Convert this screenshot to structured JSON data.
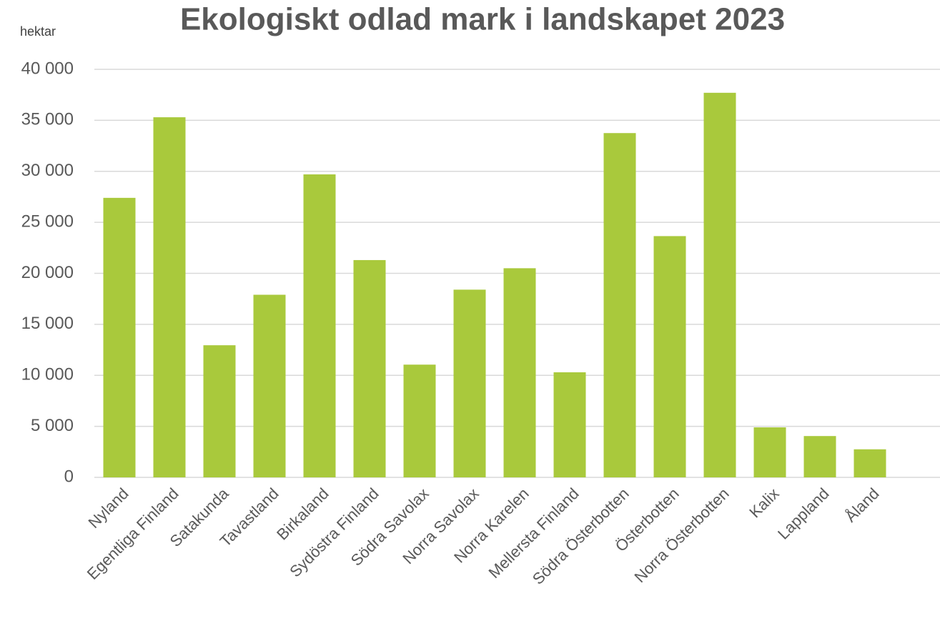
{
  "chart_data": {
    "type": "bar",
    "title": "Ekologiskt odlad mark i landskapet 2023",
    "y_label": "hektar",
    "categories": [
      "Nyland",
      "Egentliga Finland",
      "Satakunda",
      "Tavastland",
      "Birkaland",
      "Sydöstra Finland",
      "Södra Savolax",
      "Norra Savolax",
      "Norra Karelen",
      "Mellersta Finland",
      "Södra Österbotten",
      "Österbotten",
      "Norra Österbotten",
      "Kalix",
      "Lappland",
      "Åland"
    ],
    "values": [
      27400,
      35300,
      12950,
      17900,
      29700,
      21300,
      11050,
      18400,
      20500,
      10300,
      33750,
      23650,
      37700,
      4900,
      4050,
      2750
    ],
    "color": "#a9c93c",
    "ylim": [
      0,
      40000
    ],
    "yticks": [
      0,
      {
        "value": 5000,
        "label": "5 000"
      },
      {
        "value": 10000,
        "label": "10 000"
      },
      {
        "value": 15000,
        "label": "15 000"
      },
      {
        "value": 20000,
        "label": "20 000"
      },
      {
        "value": 25000,
        "label": "25 000"
      },
      {
        "value": 30000,
        "label": "30 000"
      },
      {
        "value": 35000,
        "label": "35 000"
      },
      {
        "value": 40000,
        "label": "40 000"
      }
    ],
    "grid": true
  }
}
